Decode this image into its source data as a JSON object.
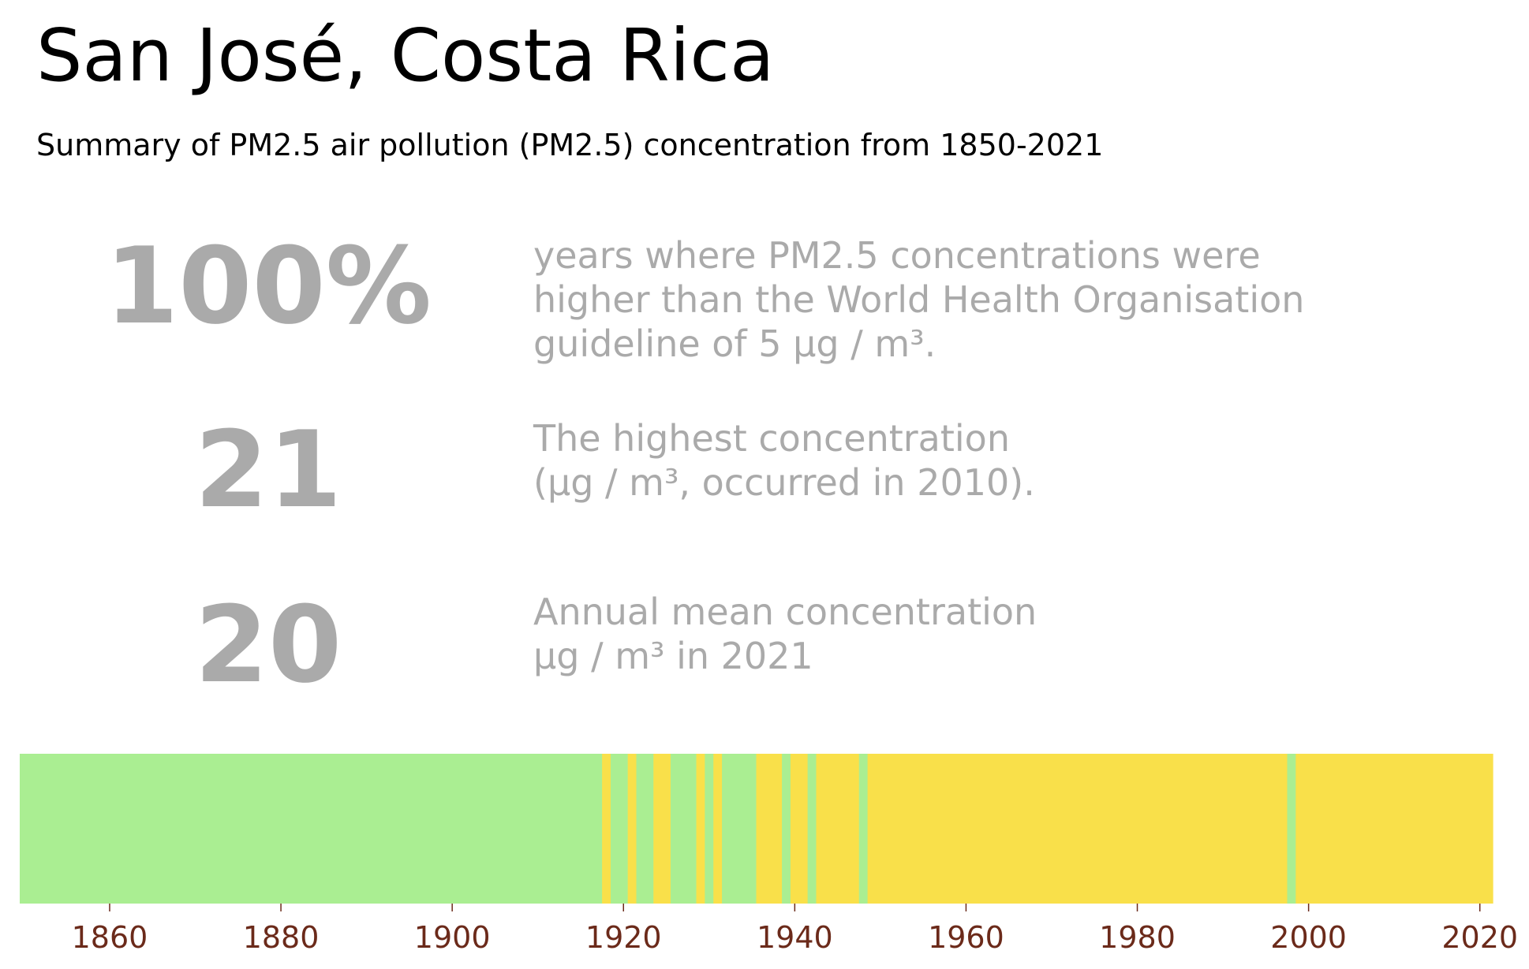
{
  "title": "San José, Costa Rica",
  "subtitle": "Summary of PM2.5 air pollution (PM2.5) concentration from 1850-2021",
  "stats": [
    {
      "value": "100%",
      "lines": [
        "years where PM2.5 concentrations were",
        "higher than the World Health Organisation",
        "guideline of 5 µg / m³."
      ]
    },
    {
      "value": "21",
      "lines": [
        "The highest concentration",
        "(µg / m³, occurred in 2010)."
      ]
    },
    {
      "value": "20",
      "lines": [
        "Annual mean concentration",
        "µg / m³ in 2021"
      ]
    }
  ],
  "chart_data": {
    "type": "heatmap",
    "x_range": [
      1850,
      2021
    ],
    "x_ticks": [
      "1860",
      "1880",
      "1900",
      "1920",
      "1940",
      "1960",
      "1980",
      "2000",
      "2020"
    ],
    "colors": {
      "green": "#aaee92",
      "yellow": "#f9e04a",
      "tick_label": "#6b2a1a"
    },
    "segments": [
      {
        "start": 1850,
        "end": 1918,
        "color": "green"
      },
      {
        "start": 1918,
        "end": 1919,
        "color": "yellow"
      },
      {
        "start": 1919,
        "end": 1921,
        "color": "green"
      },
      {
        "start": 1921,
        "end": 1922,
        "color": "yellow"
      },
      {
        "start": 1922,
        "end": 1924,
        "color": "green"
      },
      {
        "start": 1924,
        "end": 1926,
        "color": "yellow"
      },
      {
        "start": 1926,
        "end": 1929,
        "color": "green"
      },
      {
        "start": 1929,
        "end": 1930,
        "color": "yellow"
      },
      {
        "start": 1930,
        "end": 1931,
        "color": "green"
      },
      {
        "start": 1931,
        "end": 1932,
        "color": "yellow"
      },
      {
        "start": 1932,
        "end": 1936,
        "color": "green"
      },
      {
        "start": 1936,
        "end": 1939,
        "color": "yellow"
      },
      {
        "start": 1939,
        "end": 1940,
        "color": "green"
      },
      {
        "start": 1940,
        "end": 1942,
        "color": "yellow"
      },
      {
        "start": 1942,
        "end": 1943,
        "color": "green"
      },
      {
        "start": 1943,
        "end": 1948,
        "color": "yellow"
      },
      {
        "start": 1948,
        "end": 1949,
        "color": "green"
      },
      {
        "start": 1949,
        "end": 1998,
        "color": "yellow"
      },
      {
        "start": 1998,
        "end": 1999,
        "color": "green"
      },
      {
        "start": 1999,
        "end": 2022,
        "color": "yellow"
      }
    ]
  }
}
